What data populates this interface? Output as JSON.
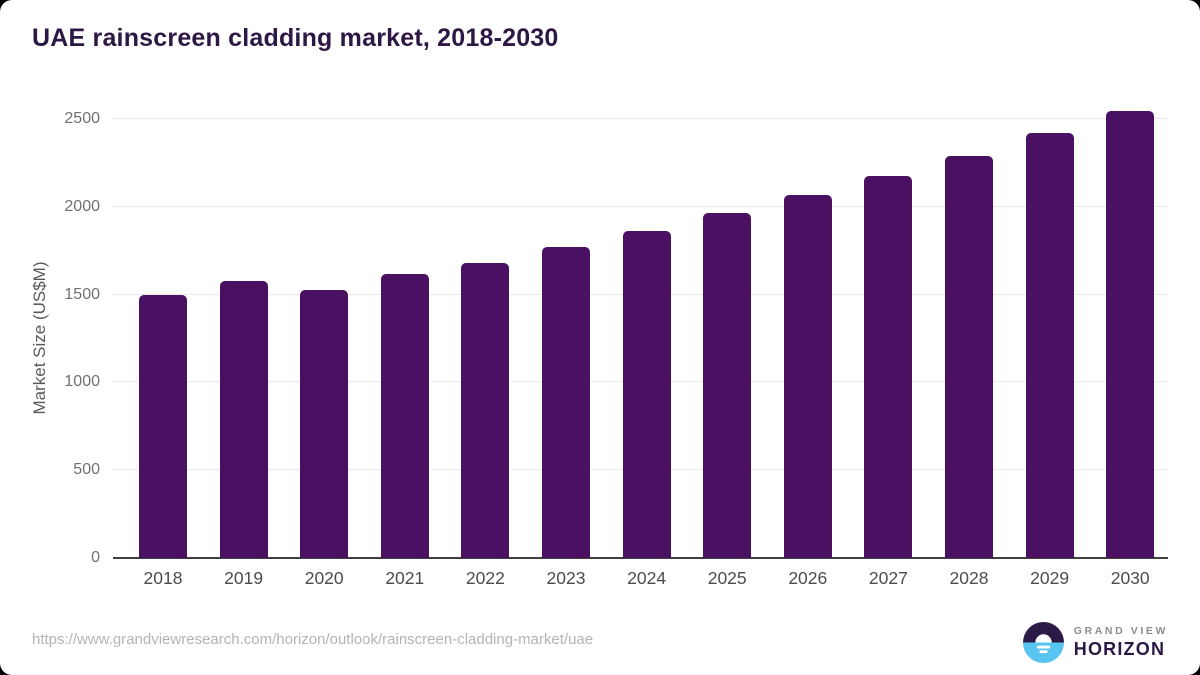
{
  "chart_data": {
    "type": "bar",
    "title": "UAE rainscreen cladding market, 2018-2030",
    "categories": [
      "2018",
      "2019",
      "2020",
      "2021",
      "2022",
      "2023",
      "2024",
      "2025",
      "2026",
      "2027",
      "2028",
      "2029",
      "2030"
    ],
    "values": [
      1500,
      1580,
      1525,
      1615,
      1680,
      1770,
      1865,
      1965,
      2065,
      2175,
      2290,
      2420,
      2545
    ],
    "xlabel": "",
    "ylabel": "Market Size (US$M)",
    "ylim": [
      0,
      2500
    ],
    "yticks": [
      0,
      500,
      1000,
      1500,
      2000,
      2500
    ],
    "grid": true,
    "legend": "none",
    "bar_color": "#4a1061"
  },
  "footer": {
    "source_url": "https://www.grandviewresearch.com/horizon/outlook/rainscreen-cladding-market/uae",
    "logo": {
      "line1": "GRAND VIEW",
      "line2": "HORIZON"
    }
  },
  "colors": {
    "title": "#2d1745",
    "bar": "#4a1061",
    "gridline": "#e9e9e9",
    "axis_line": "#3f3f3f",
    "logo_dark": "#2b1a45",
    "logo_blue": "#58c5f1"
  }
}
